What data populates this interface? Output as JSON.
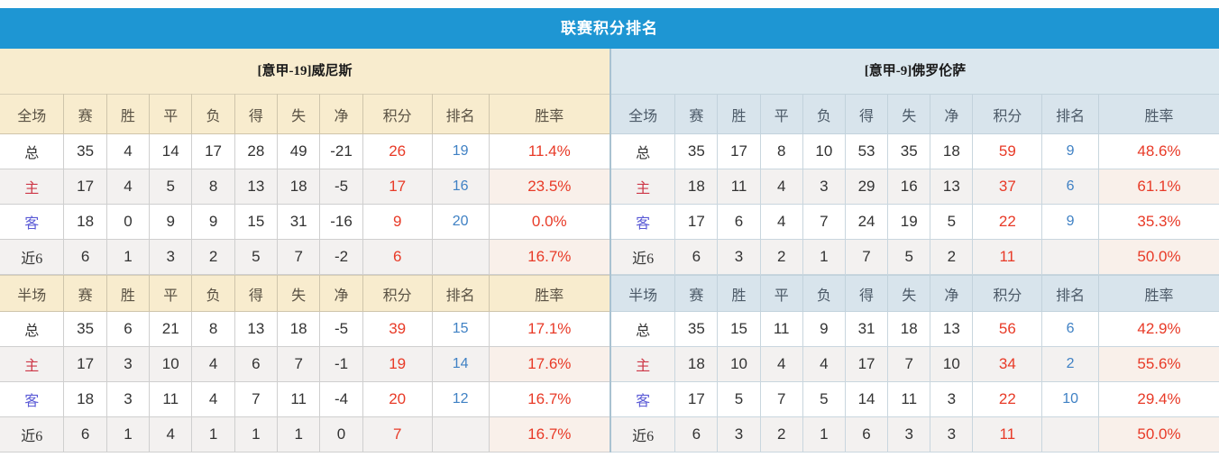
{
  "title": "联赛积分排名",
  "colors": {
    "title_bar_bg": "#1e96d3",
    "home_panel_header_bg": "#f8ecce",
    "away_panel_header_bg": "#d8e4ec",
    "points_text": "#e83a27",
    "winrate_text": "#e83a27",
    "rank_text": "#3f81c4",
    "home_label_text": "#cd3646",
    "away_label_text": "#5b5bd6"
  },
  "left_panel": {
    "team_title": "[意甲-19]威尼斯",
    "tables": [
      {
        "scope": "全场",
        "columns": [
          "赛",
          "胜",
          "平",
          "负",
          "得",
          "失",
          "净",
          "积分",
          "排名",
          "胜率"
        ],
        "rows": [
          {
            "label": "总",
            "type": "total",
            "cells": [
              "35",
              "4",
              "14",
              "17",
              "28",
              "49",
              "-21",
              "26",
              "19",
              "11.4%"
            ]
          },
          {
            "label": "主",
            "type": "home",
            "cells": [
              "17",
              "4",
              "5",
              "8",
              "13",
              "18",
              "-5",
              "17",
              "16",
              "23.5%"
            ]
          },
          {
            "label": "客",
            "type": "away",
            "cells": [
              "18",
              "0",
              "9",
              "9",
              "15",
              "31",
              "-16",
              "9",
              "20",
              "0.0%"
            ]
          },
          {
            "label": "近6",
            "type": "last6",
            "cells": [
              "6",
              "1",
              "3",
              "2",
              "5",
              "7",
              "-2",
              "6",
              "",
              "16.7%"
            ]
          }
        ]
      },
      {
        "scope": "半场",
        "columns": [
          "赛",
          "胜",
          "平",
          "负",
          "得",
          "失",
          "净",
          "积分",
          "排名",
          "胜率"
        ],
        "rows": [
          {
            "label": "总",
            "type": "total",
            "cells": [
              "35",
              "6",
              "21",
              "8",
              "13",
              "18",
              "-5",
              "39",
              "15",
              "17.1%"
            ]
          },
          {
            "label": "主",
            "type": "home",
            "cells": [
              "17",
              "3",
              "10",
              "4",
              "6",
              "7",
              "-1",
              "19",
              "14",
              "17.6%"
            ]
          },
          {
            "label": "客",
            "type": "away",
            "cells": [
              "18",
              "3",
              "11",
              "4",
              "7",
              "11",
              "-4",
              "20",
              "12",
              "16.7%"
            ]
          },
          {
            "label": "近6",
            "type": "last6",
            "cells": [
              "6",
              "1",
              "4",
              "1",
              "1",
              "1",
              "0",
              "7",
              "",
              "16.7%"
            ]
          }
        ]
      }
    ]
  },
  "right_panel": {
    "team_title": "[意甲-9]佛罗伦萨",
    "tables": [
      {
        "scope": "全场",
        "columns": [
          "赛",
          "胜",
          "平",
          "负",
          "得",
          "失",
          "净",
          "积分",
          "排名",
          "胜率"
        ],
        "rows": [
          {
            "label": "总",
            "type": "total",
            "cells": [
              "35",
              "17",
              "8",
              "10",
              "53",
              "35",
              "18",
              "59",
              "9",
              "48.6%"
            ]
          },
          {
            "label": "主",
            "type": "home",
            "cells": [
              "18",
              "11",
              "4",
              "3",
              "29",
              "16",
              "13",
              "37",
              "6",
              "61.1%"
            ]
          },
          {
            "label": "客",
            "type": "away",
            "cells": [
              "17",
              "6",
              "4",
              "7",
              "24",
              "19",
              "5",
              "22",
              "9",
              "35.3%"
            ]
          },
          {
            "label": "近6",
            "type": "last6",
            "cells": [
              "6",
              "3",
              "2",
              "1",
              "7",
              "5",
              "2",
              "11",
              "",
              "50.0%"
            ]
          }
        ]
      },
      {
        "scope": "半场",
        "columns": [
          "赛",
          "胜",
          "平",
          "负",
          "得",
          "失",
          "净",
          "积分",
          "排名",
          "胜率"
        ],
        "rows": [
          {
            "label": "总",
            "type": "total",
            "cells": [
              "35",
              "15",
              "11",
              "9",
              "31",
              "18",
              "13",
              "56",
              "6",
              "42.9%"
            ]
          },
          {
            "label": "主",
            "type": "home",
            "cells": [
              "18",
              "10",
              "4",
              "4",
              "17",
              "7",
              "10",
              "34",
              "2",
              "55.6%"
            ]
          },
          {
            "label": "客",
            "type": "away",
            "cells": [
              "17",
              "5",
              "7",
              "5",
              "14",
              "11",
              "3",
              "22",
              "10",
              "29.4%"
            ]
          },
          {
            "label": "近6",
            "type": "last6",
            "cells": [
              "6",
              "3",
              "2",
              "1",
              "6",
              "3",
              "3",
              "11",
              "",
              "50.0%"
            ]
          }
        ]
      }
    ]
  }
}
